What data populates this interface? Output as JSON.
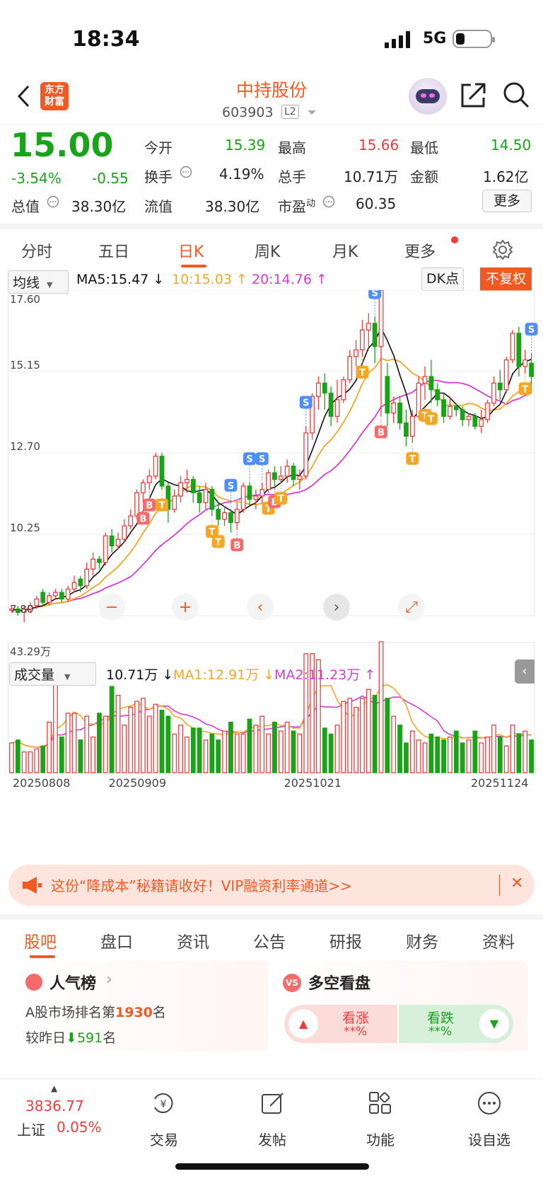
{
  "status": {
    "time": "18:34",
    "network": "5G"
  },
  "nav": {
    "logo_top": "东方",
    "logo_bottom": "财富",
    "stock_name": "中持股份",
    "stock_code": "603903",
    "level": "L2"
  },
  "quote": {
    "price": "15.00",
    "change_pct": "-3.54%",
    "change": "-0.55",
    "open_label": "今开",
    "open": "15.39",
    "high_label": "最高",
    "high": "15.66",
    "low_label": "最低",
    "low": "14.50",
    "turnover_label": "换手",
    "turnover": "4.19%",
    "volume_label": "总手",
    "volume": "10.71万",
    "amount_label": "金额",
    "amount": "1.62亿",
    "mktcap_label": "总值",
    "mktcap": "38.30亿",
    "float_label": "流值",
    "float_cap": "38.30亿",
    "pe_label": "市盈",
    "pe_sup": "动",
    "pe": "60.35",
    "more": "更多"
  },
  "period_tabs": [
    "分时",
    "五日",
    "日K",
    "周K",
    "月K",
    "更多"
  ],
  "indicators": {
    "ma_select": "均线",
    "ma5": "MA5:15.47 ↓",
    "ma10": "10:15.03 ↑",
    "ma20": "20:14.76 ↑",
    "dk": "DK点",
    "fuquan": "不复权",
    "vol_select": "成交量",
    "vol": "10.71万 ↓",
    "vol_ma1": "MA1:12.91万 ↓",
    "vol_ma2": "MA2:11.23万 ↑"
  },
  "chart_data": {
    "type": "candlestick",
    "price_ticks": [
      "17.60",
      "15.15",
      "12.70",
      "10.25",
      "7.80"
    ],
    "volume_max_label": "43.29万",
    "dates": [
      "20250808",
      "20250909",
      "20251021",
      "20251124"
    ],
    "price_range": [
      7.8,
      17.6
    ],
    "volume_range": [
      0,
      43.29
    ],
    "candles": [
      [
        8.0,
        8.0,
        7.9,
        8.1
      ],
      [
        8.0,
        7.9,
        7.8,
        8.1
      ],
      [
        7.9,
        8.0,
        7.6,
        8.1
      ],
      [
        8.0,
        8.1,
        7.9,
        8.2
      ],
      [
        8.1,
        8.3,
        8.0,
        8.4
      ],
      [
        8.5,
        8.2,
        8.1,
        8.6
      ],
      [
        8.2,
        8.4,
        8.1,
        8.5
      ],
      [
        8.4,
        8.5,
        8.3,
        8.6
      ],
      [
        8.5,
        8.3,
        8.2,
        8.6
      ],
      [
        8.3,
        8.6,
        8.2,
        8.7
      ],
      [
        8.6,
        8.8,
        8.5,
        9.0
      ],
      [
        8.9,
        8.7,
        8.5,
        9.0
      ],
      [
        8.7,
        9.2,
        8.6,
        9.4
      ],
      [
        9.2,
        9.5,
        9.0,
        9.7
      ],
      [
        9.5,
        9.4,
        9.2,
        9.6
      ],
      [
        9.4,
        10.2,
        9.3,
        10.3
      ],
      [
        10.2,
        9.9,
        9.7,
        10.4
      ],
      [
        9.9,
        10.1,
        9.8,
        10.3
      ],
      [
        10.1,
        10.5,
        10.0,
        10.7
      ],
      [
        10.5,
        10.8,
        10.4,
        11.0
      ],
      [
        10.8,
        11.5,
        10.7,
        11.6
      ],
      [
        11.5,
        11.8,
        11.2,
        11.9
      ],
      [
        11.8,
        12.0,
        11.6,
        12.2
      ],
      [
        12.0,
        12.6,
        11.9,
        12.7
      ],
      [
        12.6,
        11.7,
        11.6,
        12.7
      ],
      [
        11.7,
        11.0,
        10.6,
        11.8
      ],
      [
        11.0,
        11.4,
        10.9,
        11.6
      ],
      [
        11.4,
        11.8,
        11.2,
        12.0
      ],
      [
        11.8,
        11.9,
        11.5,
        12.2
      ],
      [
        11.9,
        11.5,
        11.2,
        12.0
      ],
      [
        11.5,
        11.2,
        10.9,
        11.7
      ],
      [
        11.2,
        11.6,
        11.0,
        11.8
      ],
      [
        11.6,
        11.0,
        10.8,
        11.7
      ],
      [
        11.0,
        10.7,
        10.5,
        11.2
      ],
      [
        10.7,
        10.9,
        10.5,
        11.1
      ],
      [
        10.9,
        10.6,
        10.3,
        11.0
      ],
      [
        10.6,
        11.0,
        10.4,
        11.2
      ],
      [
        11.0,
        11.7,
        10.9,
        11.8
      ],
      [
        11.7,
        11.3,
        11.1,
        11.8
      ],
      [
        11.3,
        11.4,
        11.0,
        11.6
      ],
      [
        11.4,
        11.6,
        11.2,
        11.8
      ],
      [
        11.6,
        12.1,
        11.5,
        12.2
      ],
      [
        12.1,
        11.9,
        11.7,
        12.3
      ],
      [
        11.9,
        12.0,
        11.8,
        12.3
      ],
      [
        12.0,
        12.3,
        11.8,
        12.5
      ],
      [
        12.3,
        11.9,
        11.7,
        12.4
      ],
      [
        11.9,
        12.0,
        11.6,
        12.2
      ],
      [
        12.0,
        13.3,
        11.9,
        13.5
      ],
      [
        13.3,
        14.4,
        13.1,
        14.5
      ],
      [
        14.4,
        14.8,
        14.0,
        15.0
      ],
      [
        14.8,
        14.5,
        14.0,
        15.1
      ],
      [
        14.5,
        13.8,
        13.5,
        14.7
      ],
      [
        13.8,
        14.3,
        13.6,
        14.9
      ],
      [
        14.3,
        14.9,
        14.2,
        15.0
      ],
      [
        14.9,
        15.6,
        14.8,
        15.8
      ],
      [
        15.6,
        15.8,
        15.3,
        16.1
      ],
      [
        15.8,
        16.4,
        15.6,
        16.7
      ],
      [
        16.4,
        16.6,
        15.9,
        16.9
      ],
      [
        16.6,
        15.9,
        15.4,
        16.8
      ],
      [
        15.9,
        17.6,
        13.8,
        17.6
      ],
      [
        15.0,
        13.9,
        13.5,
        15.4
      ],
      [
        13.9,
        14.2,
        13.6,
        14.4
      ],
      [
        14.2,
        13.6,
        13.4,
        14.4
      ],
      [
        13.6,
        13.2,
        12.9,
        14.0
      ],
      [
        13.2,
        13.8,
        13.0,
        14.0
      ],
      [
        13.8,
        14.8,
        13.7,
        15.0
      ],
      [
        14.8,
        15.0,
        14.3,
        15.3
      ],
      [
        15.0,
        14.6,
        14.2,
        15.5
      ],
      [
        14.6,
        14.3,
        14.1,
        14.8
      ],
      [
        14.3,
        13.8,
        13.6,
        14.5
      ],
      [
        13.8,
        14.1,
        13.7,
        14.4
      ],
      [
        14.1,
        14.0,
        13.8,
        14.2
      ],
      [
        14.0,
        13.7,
        13.5,
        14.1
      ],
      [
        13.7,
        13.8,
        13.5,
        13.9
      ],
      [
        13.8,
        13.5,
        13.4,
        13.9
      ],
      [
        13.5,
        13.7,
        13.3,
        14.0
      ],
      [
        13.7,
        14.2,
        13.6,
        14.3
      ],
      [
        14.2,
        14.8,
        14.1,
        15.0
      ],
      [
        14.8,
        14.6,
        14.3,
        15.2
      ],
      [
        14.6,
        15.5,
        14.5,
        15.6
      ],
      [
        15.5,
        16.3,
        15.4,
        16.4
      ],
      [
        16.3,
        15.3,
        15.0,
        16.5
      ],
      [
        15.3,
        15.5,
        15.1,
        15.8
      ],
      [
        15.4,
        15.0,
        14.5,
        15.7
      ]
    ],
    "volumes": [
      10,
      11,
      7,
      7,
      8,
      9,
      17,
      33,
      12,
      20,
      20,
      11,
      19,
      12,
      20,
      19,
      29,
      26,
      16,
      22,
      24,
      25,
      19,
      23,
      21,
      19,
      13,
      16,
      12,
      15,
      15,
      11,
      13,
      11,
      14,
      17,
      13,
      13,
      18,
      16,
      19,
      13,
      17,
      14,
      17,
      14,
      13,
      40,
      40,
      38,
      15,
      13,
      16,
      24,
      25,
      22,
      25,
      28,
      26,
      44,
      25,
      19,
      16,
      10,
      14,
      11,
      10,
      13,
      12,
      11,
      12,
      14,
      10,
      11,
      14,
      10,
      12,
      16,
      12,
      9,
      16,
      13,
      14,
      11
    ]
  },
  "chart_controls": [
    "−",
    "+",
    "‹",
    "›",
    "⤢"
  ],
  "banner": {
    "text": "这份“降成本”秘籍请收好！VIP融资利率通道>>",
    "close": "✕"
  },
  "bottom_tabs": [
    "股吧",
    "盘口",
    "资讯",
    "公告",
    "研报",
    "财务",
    "资料"
  ],
  "popularity": {
    "title": "人气榜",
    "rank_prefix": "A股市场排名第",
    "rank": "1930",
    "rank_suffix": "名",
    "change_prefix": "较昨日",
    "change": "591",
    "change_suffix": "名"
  },
  "sentiment": {
    "title": "多空看盘",
    "up_label": "看涨",
    "up_value": "**%",
    "down_label": "看跌",
    "down_value": "**%"
  },
  "bottom_nav": {
    "index_value": "3836.77",
    "index_name": "上证",
    "index_change": "0.05%",
    "trade": "交易",
    "post": "发帖",
    "functions": "功能",
    "watch": "设自选"
  },
  "colors": {
    "up": "#f23b3b",
    "down": "#19a319",
    "accent": "#f05a22",
    "ma5": "#111111",
    "ma10": "#f5a623",
    "ma20": "#d63bd4"
  }
}
